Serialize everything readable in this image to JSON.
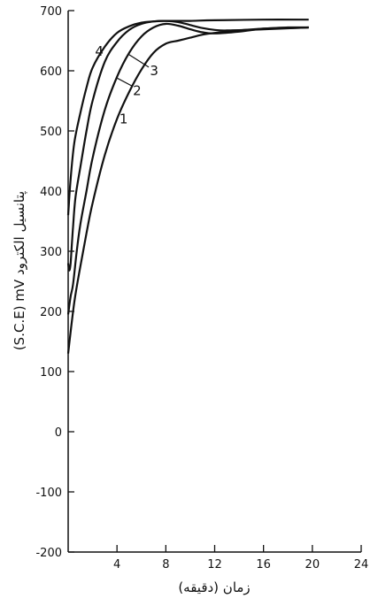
{
  "chart_data": {
    "type": "line",
    "title": "",
    "xlabel": "زمان (دقیقه)",
    "ylabel": "(S.C.E) mV پتانسیل الکترود",
    "xlim": [
      0,
      24
    ],
    "ylim": [
      -200,
      700
    ],
    "x_ticks": [
      4,
      8,
      12,
      16,
      20,
      24
    ],
    "y_ticks": [
      700,
      600,
      500,
      400,
      300,
      200,
      100,
      0,
      -100,
      -200
    ],
    "grid": false,
    "series": [
      {
        "name": "1",
        "x": [
          0,
          0.5,
          1,
          1.5,
          2,
          3,
          4,
          5,
          6,
          7,
          8,
          9,
          10,
          11,
          12,
          14,
          16,
          18,
          19.7
        ],
        "y": [
          130,
          215,
          275,
          330,
          380,
          460,
          520,
          565,
          602,
          630,
          645,
          650,
          655,
          660,
          663,
          667,
          670,
          671,
          672
        ]
      },
      {
        "name": "2",
        "x": [
          0,
          0.2,
          0.4,
          0.7,
          1,
          1.5,
          2,
          3,
          4,
          5,
          6,
          7,
          8,
          9,
          10,
          11,
          12,
          14,
          16,
          18,
          19.7
        ],
        "y": [
          195,
          225,
          245,
          300,
          345,
          400,
          455,
          535,
          590,
          630,
          657,
          672,
          678,
          675,
          669,
          664,
          662,
          665,
          670,
          672,
          672
        ]
      },
      {
        "name": "3",
        "x": [
          0,
          0.1,
          0.2,
          0.3,
          0.4,
          0.6,
          1,
          1.5,
          2,
          3,
          4,
          5,
          6,
          7,
          8,
          9,
          10,
          11,
          12,
          13,
          16,
          19.7
        ],
        "y": [
          280,
          268,
          280,
          310,
          340,
          390,
          440,
          500,
          550,
          615,
          648,
          668,
          678,
          682,
          683,
          681,
          676,
          671,
          668,
          667,
          669,
          672
        ]
      },
      {
        "name": "4",
        "x": [
          0,
          0.2,
          0.5,
          1,
          1.5,
          2,
          3,
          4,
          5,
          6,
          7,
          8,
          10,
          12,
          16,
          19.7
        ],
        "y": [
          360,
          420,
          480,
          530,
          572,
          605,
          640,
          663,
          674,
          680,
          682,
          683,
          683,
          684,
          685,
          685
        ]
      }
    ],
    "series_labels": [
      {
        "text": "1",
        "x": 4.2,
        "y": 520
      },
      {
        "text": "2",
        "x": 5.3,
        "y": 567
      },
      {
        "text": "3",
        "x": 6.7,
        "y": 600
      },
      {
        "text": "4",
        "x": 2.2,
        "y": 632
      }
    ]
  }
}
